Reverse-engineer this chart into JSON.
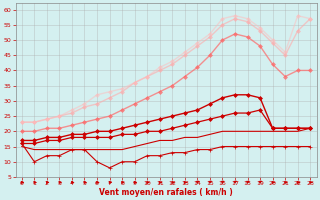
{
  "x": [
    0,
    1,
    2,
    3,
    4,
    5,
    6,
    7,
    8,
    9,
    10,
    11,
    12,
    13,
    14,
    15,
    16,
    17,
    18,
    19,
    20,
    21,
    22,
    23
  ],
  "series": [
    {
      "name": "scatter_low",
      "color": "#cc0000",
      "alpha": 1.0,
      "lw": 0.8,
      "marker": "+",
      "ms": 3,
      "values": [
        16,
        10,
        12,
        12,
        14,
        14,
        10,
        8,
        10,
        10,
        12,
        12,
        13,
        13,
        14,
        14,
        15,
        15,
        15,
        15,
        15,
        15,
        15,
        15
      ]
    },
    {
      "name": "line_bottom_flat",
      "color": "#cc0000",
      "alpha": 1.0,
      "lw": 0.8,
      "marker": null,
      "ms": 0,
      "values": [
        15,
        14,
        14,
        14,
        14,
        14,
        14,
        14,
        14,
        15,
        16,
        17,
        17,
        18,
        18,
        19,
        20,
        20,
        20,
        20,
        20,
        20,
        20,
        21
      ]
    },
    {
      "name": "line_mid1",
      "color": "#cc0000",
      "alpha": 1.0,
      "lw": 0.9,
      "marker": "D",
      "ms": 2,
      "values": [
        16,
        16,
        17,
        17,
        18,
        18,
        18,
        18,
        19,
        19,
        20,
        20,
        21,
        22,
        23,
        24,
        25,
        26,
        26,
        27,
        21,
        21,
        21,
        21
      ]
    },
    {
      "name": "line_mid2",
      "color": "#cc0000",
      "alpha": 1.0,
      "lw": 1.0,
      "marker": "D",
      "ms": 2,
      "values": [
        17,
        17,
        18,
        18,
        19,
        19,
        20,
        20,
        21,
        22,
        23,
        24,
        25,
        26,
        27,
        29,
        31,
        32,
        32,
        31,
        21,
        21,
        21,
        21
      ]
    },
    {
      "name": "line_upper1",
      "color": "#ff6666",
      "alpha": 0.7,
      "lw": 1.0,
      "marker": "D",
      "ms": 2,
      "values": [
        20,
        20,
        21,
        21,
        22,
        23,
        24,
        25,
        27,
        29,
        31,
        33,
        35,
        38,
        41,
        45,
        50,
        52,
        51,
        48,
        42,
        38,
        40,
        40
      ]
    },
    {
      "name": "line_upper2",
      "color": "#ffaaaa",
      "alpha": 0.6,
      "lw": 1.0,
      "marker": "D",
      "ms": 2,
      "values": [
        23,
        23,
        24,
        25,
        26,
        28,
        29,
        31,
        33,
        36,
        38,
        40,
        42,
        45,
        48,
        51,
        55,
        57,
        56,
        53,
        49,
        45,
        53,
        57
      ]
    },
    {
      "name": "line_top",
      "color": "#ffbbbb",
      "alpha": 0.5,
      "lw": 1.0,
      "marker": "D",
      "ms": 2,
      "values": [
        23,
        23,
        24,
        25,
        27,
        29,
        32,
        33,
        34,
        36,
        38,
        41,
        43,
        46,
        49,
        52,
        57,
        58,
        57,
        54,
        50,
        46,
        58,
        57
      ]
    }
  ],
  "arrow_angles": [
    0,
    0,
    0,
    0,
    0,
    0,
    0,
    0,
    0,
    0,
    0,
    0,
    0,
    0,
    45,
    45,
    45,
    45,
    45,
    45,
    0,
    0,
    0,
    0
  ],
  "xlim": [
    -0.5,
    23.5
  ],
  "ylim": [
    5,
    62
  ],
  "yticks": [
    5,
    10,
    15,
    20,
    25,
    30,
    35,
    40,
    45,
    50,
    55,
    60
  ],
  "xticks": [
    0,
    1,
    2,
    3,
    4,
    5,
    6,
    7,
    8,
    9,
    10,
    11,
    12,
    13,
    14,
    15,
    16,
    17,
    18,
    19,
    20,
    21,
    22,
    23
  ],
  "xlabel": "Vent moyen/en rafales ( km/h )",
  "background_color": "#d4f0f0",
  "grid_color": "#aaaaaa",
  "label_color": "#cc0000",
  "tick_color": "#cc0000"
}
